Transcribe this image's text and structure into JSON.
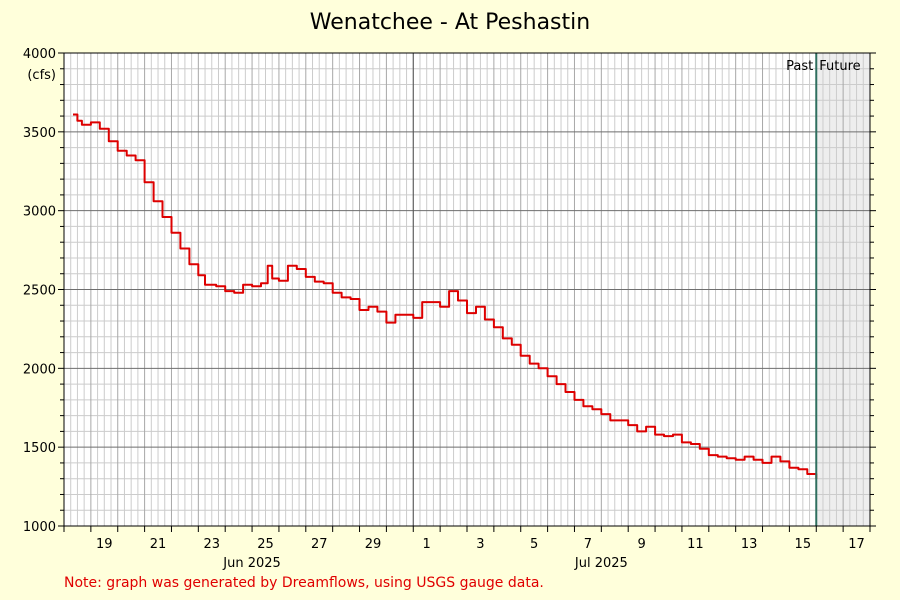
{
  "chart_data": {
    "type": "line",
    "title": "Wenatchee - At Peshastin",
    "ylabel": "(cfs)",
    "ylim": [
      1000,
      4000
    ],
    "y_ticks": [
      1000,
      1500,
      2000,
      2500,
      3000,
      3500,
      4000
    ],
    "x_range": [
      "2025-06-18T00:00",
      "2025-07-18T00:00"
    ],
    "x_tick_labels": [
      {
        "date": "2025-06-19",
        "label": "19"
      },
      {
        "date": "2025-06-21",
        "label": "21"
      },
      {
        "date": "2025-06-23",
        "label": "23"
      },
      {
        "date": "2025-06-25",
        "label": "25"
      },
      {
        "date": "2025-06-27",
        "label": "27"
      },
      {
        "date": "2025-06-29",
        "label": "29"
      },
      {
        "date": "2025-07-01",
        "label": "1"
      },
      {
        "date": "2025-07-03",
        "label": "3"
      },
      {
        "date": "2025-07-05",
        "label": "5"
      },
      {
        "date": "2025-07-07",
        "label": "7"
      },
      {
        "date": "2025-07-09",
        "label": "9"
      },
      {
        "date": "2025-07-11",
        "label": "11"
      },
      {
        "date": "2025-07-13",
        "label": "13"
      },
      {
        "date": "2025-07-15",
        "label": "15"
      },
      {
        "date": "2025-07-17",
        "label": "17"
      }
    ],
    "month_labels": [
      {
        "date": "2025-06-25",
        "label": "Jun 2025"
      },
      {
        "date": "2025-07-08",
        "label": "Jul 2025"
      }
    ],
    "now_marker": "2025-07-16T00:00",
    "past_label": "Past",
    "future_label": "Future",
    "grid": true,
    "series": [
      {
        "color": "#dd0000",
        "points": [
          [
            "2025-06-18T08:00",
            3610
          ],
          [
            "2025-06-18T12:00",
            3570
          ],
          [
            "2025-06-18T16:00",
            3545
          ],
          [
            "2025-06-19T00:00",
            3560
          ],
          [
            "2025-06-19T08:00",
            3520
          ],
          [
            "2025-06-19T16:00",
            3440
          ],
          [
            "2025-06-20T00:00",
            3380
          ],
          [
            "2025-06-20T08:00",
            3350
          ],
          [
            "2025-06-20T16:00",
            3320
          ],
          [
            "2025-06-21T00:00",
            3180
          ],
          [
            "2025-06-21T08:00",
            3060
          ],
          [
            "2025-06-21T16:00",
            2960
          ],
          [
            "2025-06-22T00:00",
            2860
          ],
          [
            "2025-06-22T08:00",
            2760
          ],
          [
            "2025-06-22T16:00",
            2660
          ],
          [
            "2025-06-23T00:00",
            2590
          ],
          [
            "2025-06-23T06:00",
            2530
          ],
          [
            "2025-06-23T16:00",
            2520
          ],
          [
            "2025-06-24T00:00",
            2490
          ],
          [
            "2025-06-24T08:00",
            2480
          ],
          [
            "2025-06-24T16:00",
            2530
          ],
          [
            "2025-06-25T00:00",
            2520
          ],
          [
            "2025-06-25T08:00",
            2540
          ],
          [
            "2025-06-25T14:00",
            2650
          ],
          [
            "2025-06-25T18:00",
            2570
          ],
          [
            "2025-06-26T00:00",
            2555
          ],
          [
            "2025-06-26T08:00",
            2650
          ],
          [
            "2025-06-26T16:00",
            2630
          ],
          [
            "2025-06-27T00:00",
            2580
          ],
          [
            "2025-06-27T08:00",
            2550
          ],
          [
            "2025-06-27T16:00",
            2540
          ],
          [
            "2025-06-28T00:00",
            2480
          ],
          [
            "2025-06-28T08:00",
            2450
          ],
          [
            "2025-06-28T16:00",
            2440
          ],
          [
            "2025-06-29T00:00",
            2370
          ],
          [
            "2025-06-29T08:00",
            2390
          ],
          [
            "2025-06-29T16:00",
            2360
          ],
          [
            "2025-06-30T00:00",
            2290
          ],
          [
            "2025-06-30T08:00",
            2340
          ],
          [
            "2025-06-30T16:00",
            2340
          ],
          [
            "2025-07-01T00:00",
            2320
          ],
          [
            "2025-07-01T08:00",
            2420
          ],
          [
            "2025-07-01T16:00",
            2420
          ],
          [
            "2025-07-02T00:00",
            2390
          ],
          [
            "2025-07-02T08:00",
            2490
          ],
          [
            "2025-07-02T16:00",
            2430
          ],
          [
            "2025-07-03T00:00",
            2350
          ],
          [
            "2025-07-03T08:00",
            2390
          ],
          [
            "2025-07-03T16:00",
            2310
          ],
          [
            "2025-07-04T00:00",
            2260
          ],
          [
            "2025-07-04T08:00",
            2190
          ],
          [
            "2025-07-04T16:00",
            2150
          ],
          [
            "2025-07-05T00:00",
            2080
          ],
          [
            "2025-07-05T08:00",
            2030
          ],
          [
            "2025-07-05T16:00",
            2000
          ],
          [
            "2025-07-06T00:00",
            1950
          ],
          [
            "2025-07-06T08:00",
            1900
          ],
          [
            "2025-07-06T16:00",
            1850
          ],
          [
            "2025-07-07T00:00",
            1800
          ],
          [
            "2025-07-07T08:00",
            1760
          ],
          [
            "2025-07-07T16:00",
            1740
          ],
          [
            "2025-07-08T00:00",
            1710
          ],
          [
            "2025-07-08T08:00",
            1670
          ],
          [
            "2025-07-08T16:00",
            1670
          ],
          [
            "2025-07-09T00:00",
            1640
          ],
          [
            "2025-07-09T08:00",
            1600
          ],
          [
            "2025-07-09T16:00",
            1630
          ],
          [
            "2025-07-10T00:00",
            1580
          ],
          [
            "2025-07-10T08:00",
            1570
          ],
          [
            "2025-07-10T16:00",
            1580
          ],
          [
            "2025-07-11T00:00",
            1530
          ],
          [
            "2025-07-11T08:00",
            1520
          ],
          [
            "2025-07-11T16:00",
            1490
          ],
          [
            "2025-07-12T00:00",
            1450
          ],
          [
            "2025-07-12T08:00",
            1440
          ],
          [
            "2025-07-12T16:00",
            1430
          ],
          [
            "2025-07-13T00:00",
            1420
          ],
          [
            "2025-07-13T08:00",
            1440
          ],
          [
            "2025-07-13T16:00",
            1420
          ],
          [
            "2025-07-14T00:00",
            1400
          ],
          [
            "2025-07-14T08:00",
            1440
          ],
          [
            "2025-07-14T16:00",
            1410
          ],
          [
            "2025-07-15T00:00",
            1370
          ],
          [
            "2025-07-15T08:00",
            1360
          ],
          [
            "2025-07-15T16:00",
            1330
          ],
          [
            "2025-07-16T00:00",
            1300
          ]
        ]
      }
    ],
    "colors": {
      "background": "#ffffdb",
      "plot_area": "#ffffff",
      "future_area": "#eeeeee",
      "line": "#dd0000",
      "now_marker": "#2f6f5f",
      "label_red": "#e00000"
    }
  },
  "note": "Note: graph was generated by Dreamflows, using USGS gauge data."
}
